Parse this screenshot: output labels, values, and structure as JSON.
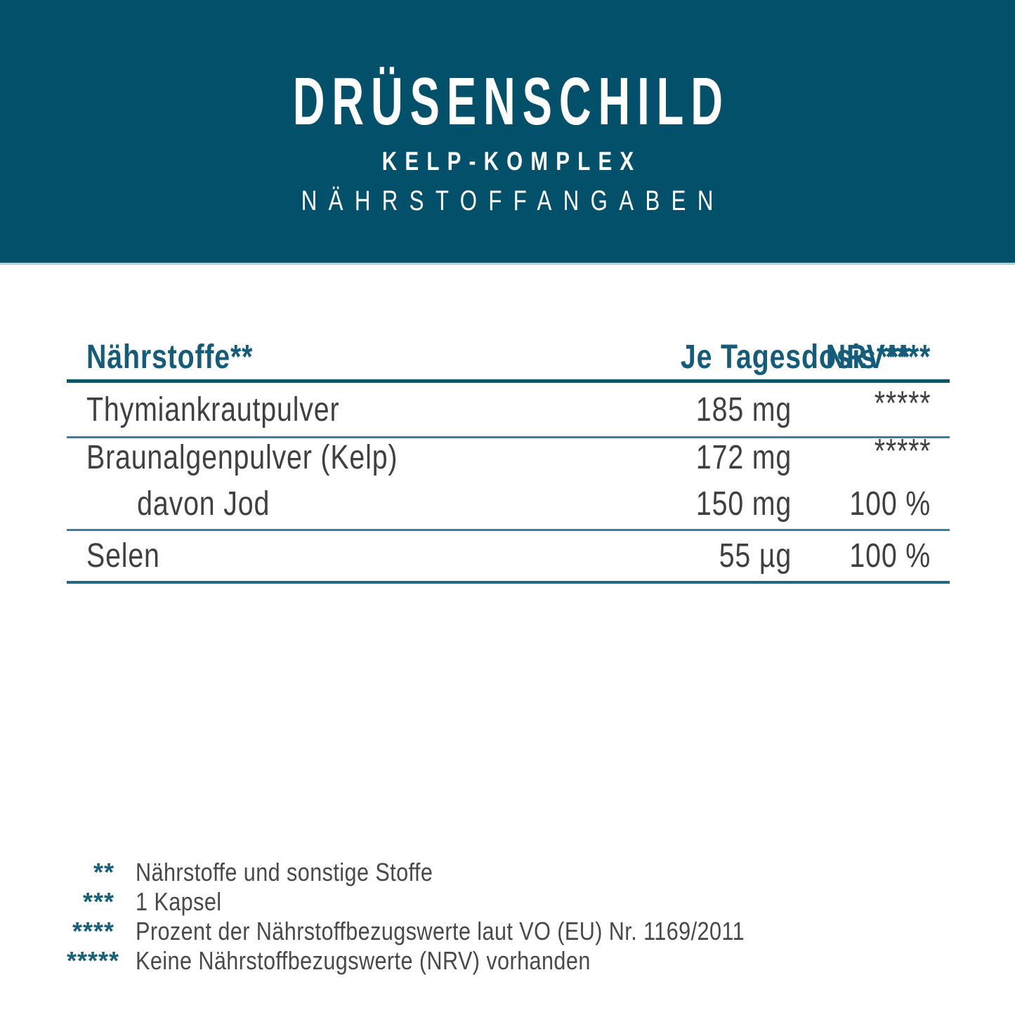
{
  "colors": {
    "band_background": "#03506B",
    "band_text": "#FFFFFF",
    "table_header_text": "#155C7B",
    "rule_thick": "#0E526C",
    "rule_thin": "#3B7E95",
    "body_text": "#3F4042",
    "footnote_marker": "#176079"
  },
  "header": {
    "title": "DRÜSENSCHILD",
    "subtitle": "KELP-KOMPLEX",
    "section": "NÄHRSTOFFANGABEN"
  },
  "table": {
    "columns": [
      "Nährstoffe**",
      "Je Tagesdosis***",
      "NRV****"
    ],
    "rows": [
      {
        "name": "Thymiankrautpulver",
        "amount": "185 mg",
        "nrv": "*****"
      },
      {
        "name": "Braunalgenpulver (Kelp)",
        "amount": "172 mg",
        "nrv": "*****",
        "sub": {
          "name": "davon Jod",
          "amount": "150 mg",
          "nrv": "100 %"
        }
      },
      {
        "name": "Selen",
        "amount": "55 µg",
        "nrv": "100 %"
      }
    ]
  },
  "footnotes": [
    {
      "marker": "**",
      "text": "Nährstoffe und sonstige Stoffe"
    },
    {
      "marker": "***",
      "text": "1 Kapsel"
    },
    {
      "marker": "****",
      "text": "Prozent der Nährstoffbezugswerte laut VO (EU) Nr. 1169/2011"
    },
    {
      "marker": "*****",
      "text": "Keine Nährstoffbezugswerte (NRV) vorhanden"
    }
  ]
}
